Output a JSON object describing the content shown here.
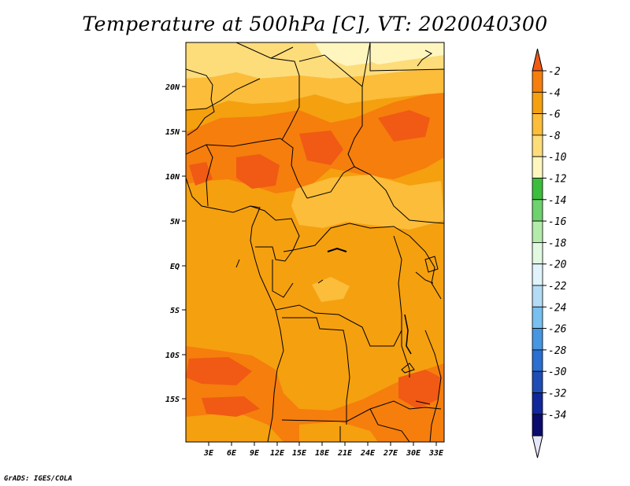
{
  "title": "Temperature at 500hPa [C], VT: 2020040300",
  "footer": "GrADS: IGES/COLA",
  "map": {
    "lat_labels": [
      "20N",
      "15N",
      "10N",
      "5N",
      "EQ",
      "5S",
      "10S",
      "15S"
    ],
    "lon_labels": [
      "3E",
      "6E",
      "9E",
      "12E",
      "15E",
      "18E",
      "21E",
      "24E",
      "27E",
      "30E",
      "33E"
    ],
    "lat_range": [
      -19.5,
      24.5
    ],
    "lon_range": [
      0,
      34
    ]
  },
  "colorbar": {
    "labels": [
      "-2",
      "-4",
      "-6",
      "-8",
      "-10",
      "-12",
      "-14",
      "-16",
      "-18",
      "-20",
      "-22",
      "-24",
      "-26",
      "-28",
      "-30",
      "-32",
      "-34"
    ],
    "colors": [
      "#f05a14",
      "#f57e0d",
      "#f5a00f",
      "#fbbd3a",
      "#fddc7a",
      "#fff6bf",
      "#3cbe3c",
      "#6ed26e",
      "#b4ebaa",
      "#e1f8e1",
      "#e1f3fb",
      "#b4dbf5",
      "#78c0ef",
      "#4696e1",
      "#2a6fd1",
      "#1e4db5",
      "#10289a",
      "#0b0b6e",
      "#e6e6fa"
    ]
  }
}
